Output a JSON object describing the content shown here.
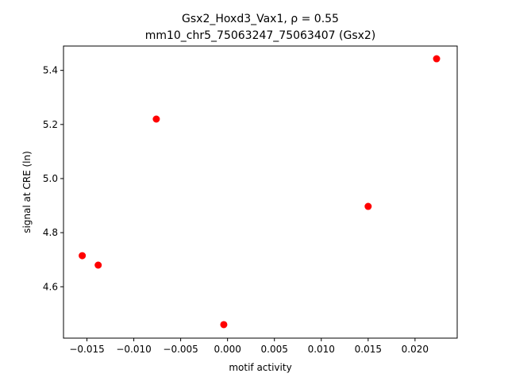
{
  "chart_data": {
    "type": "scatter",
    "title_line1": "Gsx2_Hoxd3_Vax1, ρ = 0.55",
    "title_line2": "mm10_chr5_75063247_75063407 (Gsx2)",
    "xlabel": "motif activity",
    "ylabel": "signal at CRE (ln)",
    "xlim": [
      -0.0175,
      0.0245
    ],
    "ylim": [
      4.41,
      5.49
    ],
    "xticks": [
      -0.015,
      -0.01,
      -0.005,
      0.0,
      0.005,
      0.01,
      0.015,
      0.02
    ],
    "xtick_labels": [
      "−0.015",
      "−0.010",
      "−0.005",
      "0.000",
      "0.005",
      "0.010",
      "0.015",
      "0.020"
    ],
    "yticks": [
      4.6,
      4.8,
      5.0,
      5.2,
      5.4
    ],
    "ytick_labels": [
      "4.6",
      "4.8",
      "5.0",
      "5.2",
      "5.4"
    ],
    "grid": false,
    "marker_color": "#ff0000",
    "points": [
      {
        "x": -0.0155,
        "y": 4.715
      },
      {
        "x": -0.0138,
        "y": 4.68
      },
      {
        "x": -0.0076,
        "y": 5.22
      },
      {
        "x": -0.0004,
        "y": 4.46
      },
      {
        "x": 0.015,
        "y": 4.897
      },
      {
        "x": 0.0223,
        "y": 5.443
      }
    ]
  }
}
